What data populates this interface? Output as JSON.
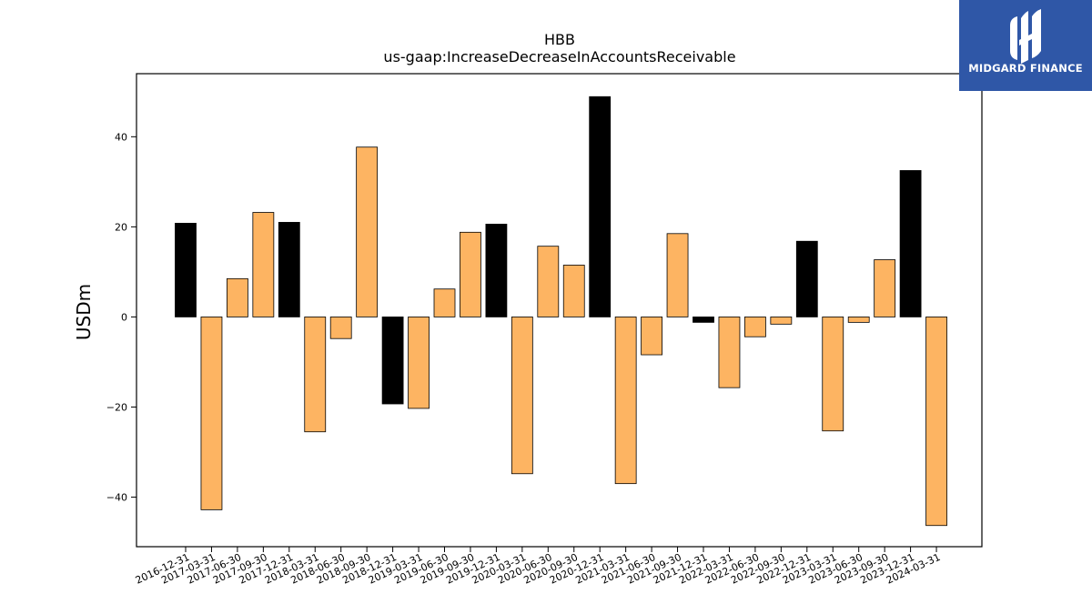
{
  "chart_data": {
    "type": "bar",
    "title": "HBB",
    "subtitle": "us-gaap:IncreaseDecreaseInAccountsReceivable",
    "xlabel": "",
    "ylabel": "USDm",
    "ylim": [
      -51,
      54
    ],
    "yticks": [
      -40,
      -20,
      0,
      20,
      40
    ],
    "grid": false,
    "categories": [
      "2016-12-31",
      "2017-03-31",
      "2017-06-30",
      "2017-09-30",
      "2017-12-31",
      "2018-03-31",
      "2018-06-30",
      "2018-09-30",
      "2018-12-31",
      "2019-03-31",
      "2019-06-30",
      "2019-09-30",
      "2019-12-31",
      "2020-03-31",
      "2020-06-30",
      "2020-09-30",
      "2020-12-31",
      "2021-03-31",
      "2021-06-30",
      "2021-09-30",
      "2021-12-31",
      "2022-03-31",
      "2022-06-30",
      "2022-09-30",
      "2022-12-31",
      "2023-03-31",
      "2023-06-30",
      "2023-09-30",
      "2023-12-31",
      "2024-03-31"
    ],
    "values": [
      20.8,
      -42.8,
      8.5,
      23.2,
      21.0,
      -25.5,
      -4.8,
      37.7,
      -19.3,
      -20.3,
      6.2,
      18.8,
      20.6,
      -34.8,
      15.7,
      11.5,
      48.9,
      -37.0,
      -8.4,
      18.5,
      -1.2,
      -15.7,
      -4.4,
      -1.6,
      16.8,
      -25.3,
      -1.2,
      12.7,
      32.5,
      -46.3
    ],
    "colors": [
      "#000000",
      "#fdb462",
      "#fdb462",
      "#fdb462",
      "#000000",
      "#fdb462",
      "#fdb462",
      "#fdb462",
      "#000000",
      "#fdb462",
      "#fdb462",
      "#fdb462",
      "#000000",
      "#fdb462",
      "#fdb462",
      "#fdb462",
      "#000000",
      "#fdb462",
      "#fdb462",
      "#fdb462",
      "#000000",
      "#fdb462",
      "#fdb462",
      "#fdb462",
      "#000000",
      "#fdb462",
      "#fdb462",
      "#fdb462",
      "#000000",
      "#fdb462"
    ]
  },
  "logo": {
    "text": "MIDGARD FINANCE",
    "background": "#2f57a7",
    "icon": "midgard-logo-icon"
  }
}
